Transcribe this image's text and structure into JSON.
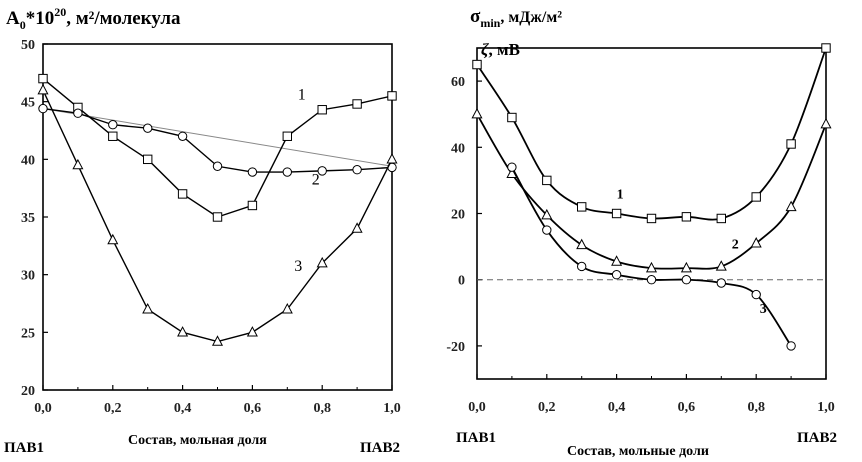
{
  "chart_data": [
    {
      "type": "line",
      "ylabel_main": "A",
      "ylabel_sub": "0",
      "ylabel_rest": "*10",
      "ylabel_sup": "20",
      "ylabel_units": ", м²/молекула",
      "xlabel": "Состав, мольная доля",
      "left_component": "ПАВ1",
      "right_component": "ПАВ2",
      "xlim": [
        0,
        1
      ],
      "ylim": [
        20,
        50
      ],
      "xticks": [
        0,
        0.2,
        0.4,
        0.6,
        0.8,
        1.0
      ],
      "xtick_labels": [
        "0,0",
        "0,2",
        "0,4",
        "0,6",
        "0,8",
        "1,0"
      ],
      "yticks": [
        20,
        25,
        30,
        35,
        40,
        45,
        50
      ],
      "ytick_labels": [
        "20",
        "25",
        "30",
        "35",
        "40",
        "45",
        "50"
      ],
      "reference_line": {
        "x": [
          0,
          1
        ],
        "y": [
          44.4,
          39.4
        ],
        "style": "thin gray (ideal additivity)"
      },
      "series": [
        {
          "name": "1",
          "marker": "square",
          "x": [
            0,
            0.1,
            0.2,
            0.3,
            0.4,
            0.5,
            0.6,
            0.7,
            0.8,
            0.9,
            1.0
          ],
          "y": [
            47.0,
            44.5,
            42.0,
            40.0,
            37.0,
            35.0,
            36.0,
            42.0,
            44.3,
            44.8,
            45.5
          ]
        },
        {
          "name": "2",
          "marker": "circle",
          "x": [
            0,
            0.1,
            0.2,
            0.3,
            0.4,
            0.5,
            0.6,
            0.7,
            0.8,
            0.9,
            1.0
          ],
          "y": [
            44.4,
            44.0,
            43.0,
            42.7,
            42.0,
            39.4,
            38.9,
            38.9,
            39.0,
            39.1,
            39.3
          ]
        },
        {
          "name": "3",
          "marker": "triangle",
          "x": [
            0,
            0.1,
            0.2,
            0.3,
            0.4,
            0.5,
            0.6,
            0.7,
            0.8,
            0.9,
            1.0
          ],
          "y": [
            46.0,
            39.5,
            33.0,
            27.0,
            25.0,
            24.2,
            25.0,
            27.0,
            31.0,
            34.0,
            40.0
          ]
        }
      ],
      "curve_labels": [
        {
          "text": "1",
          "x": 0.73,
          "y": 45.2
        },
        {
          "text": "2",
          "x": 0.77,
          "y": 37.8
        },
        {
          "text": "3",
          "x": 0.72,
          "y": 30.3
        }
      ]
    },
    {
      "type": "line",
      "ylabel_top_main": "σ",
      "ylabel_top_sub": "min",
      "ylabel_top_units": ", мДж/м²",
      "ylabel_bottom_symbol": "ζ",
      "ylabel_bottom_units": ", мВ",
      "xlabel": "Состав, мольные доли",
      "left_component": "ПАВ1",
      "right_component": "ПАВ2",
      "xlim": [
        0,
        1
      ],
      "ylim": [
        -30,
        70
      ],
      "xticks": [
        0,
        0.2,
        0.4,
        0.6,
        0.8,
        1.0
      ],
      "xtick_labels": [
        "0,0",
        "0,2",
        "0,4",
        "0,6",
        "0,8",
        "1,0"
      ],
      "yticks": [
        -20,
        0,
        20,
        40,
        60
      ],
      "ytick_labels": [
        "-20",
        "0",
        "20",
        "40",
        "60"
      ],
      "zero_line": {
        "y": 0,
        "style": "dashed"
      },
      "series": [
        {
          "name": "1",
          "marker": "square",
          "x": [
            0,
            0.1,
            0.2,
            0.3,
            0.4,
            0.5,
            0.6,
            0.7,
            0.8,
            0.9,
            1.0
          ],
          "y": [
            65,
            49,
            30,
            22,
            20,
            18.5,
            19,
            18.5,
            25,
            41,
            70
          ]
        },
        {
          "name": "2",
          "marker": "triangle",
          "x": [
            0,
            0.1,
            0.2,
            0.3,
            0.4,
            0.5,
            0.6,
            0.7,
            0.8,
            0.9,
            1.0
          ],
          "y": [
            50,
            32,
            19.5,
            10.5,
            5.5,
            3.5,
            3.5,
            4,
            11,
            22,
            47
          ]
        },
        {
          "name": "3",
          "marker": "circle",
          "x": [
            0.1,
            0.2,
            0.3,
            0.4,
            0.5,
            0.6,
            0.7,
            0.8,
            0.9
          ],
          "y": [
            34,
            15,
            4,
            1.5,
            0,
            0,
            -1,
            -4.5,
            -20
          ]
        }
      ],
      "curve_labels": [
        {
          "text": "1",
          "x": 0.4,
          "y": 24.5
        },
        {
          "text": "2",
          "x": 0.73,
          "y": 9.5
        },
        {
          "text": "3",
          "x": 0.81,
          "y": -10
        }
      ]
    }
  ]
}
